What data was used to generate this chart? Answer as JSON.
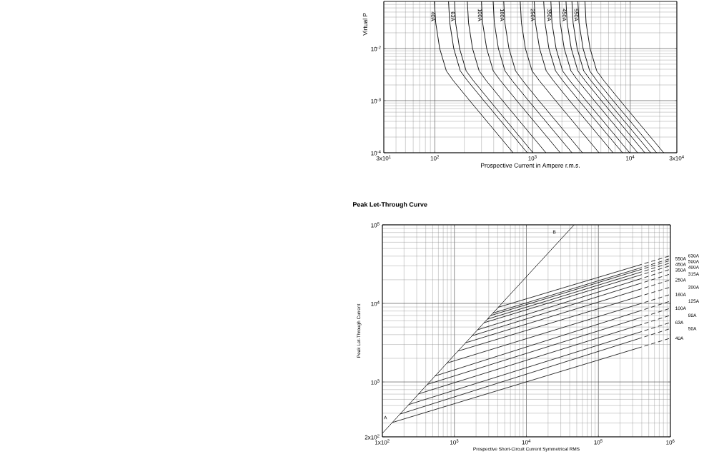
{
  "chart_data": [
    {
      "type": "line",
      "xlabel": "Prospective Current in Ampere r.m.s.",
      "ylabel": "Virtual P",
      "log": "xy",
      "grid": true,
      "xlim": [
        30,
        30000
      ],
      "ylim": [
        0.0001,
        0.08
      ],
      "xticks": [
        {
          "value": 30,
          "label": "3x10$^{1}$"
        },
        {
          "value": 100,
          "label": "10$^{2}$"
        },
        {
          "value": 1000,
          "label": "10$^{3}$"
        },
        {
          "value": 10000,
          "label": "10$^{4}$"
        },
        {
          "value": 30000,
          "label": "3x10$^{4}$"
        }
      ],
      "yticks": [
        {
          "value": 0.0001,
          "label": "10$^{-4}$"
        },
        {
          "value": 0.001,
          "label": "10$^{-3}$"
        },
        {
          "value": 0.01,
          "label": "10$^{-2}$"
        }
      ],
      "series": [
        {
          "name": "40A",
          "color": "#000000",
          "x": [
            98.8,
            102,
            112,
            131,
            154,
            227,
            632
          ],
          "values": [
            0.08,
            0.0312,
            0.01,
            0.00372,
            0.00243,
            0.001,
            0.0001
          ]
        },
        {
          "color": "#000000",
          "x": [
            138,
            142,
            156,
            182,
            215,
            317,
            883
          ],
          "values": [
            0.08,
            0.0312,
            0.01,
            0.00372,
            0.00243,
            0.001,
            0.0001
          ]
        },
        {
          "name": "63A",
          "color": "#000000",
          "x": [
            159,
            163,
            179,
            209,
            247,
            364,
            1010
          ],
          "values": [
            0.08,
            0.0312,
            0.01,
            0.00372,
            0.00243,
            0.001,
            0.0001
          ]
        },
        {
          "color": "#000000",
          "x": [
            215,
            221,
            243,
            284,
            335,
            493,
            1370
          ],
          "values": [
            0.08,
            0.0312,
            0.01,
            0.00372,
            0.00243,
            0.001,
            0.0001
          ]
        },
        {
          "name": "100A",
          "color": "#000000",
          "x": [
            300,
            308,
            339,
            396,
            468,
            689,
            1920
          ],
          "values": [
            0.08,
            0.0312,
            0.01,
            0.00372,
            0.00243,
            0.001,
            0.0001
          ]
        },
        {
          "color": "#000000",
          "x": [
            395,
            406,
            447,
            522,
            617,
            908,
            2530
          ],
          "values": [
            0.08,
            0.0312,
            0.01,
            0.00372,
            0.00243,
            0.001,
            0.0001
          ]
        },
        {
          "name": "160A",
          "color": "#000000",
          "x": [
            507,
            521,
            573,
            670,
            791,
            1160,
            3240
          ],
          "values": [
            0.08,
            0.0312,
            0.01,
            0.00372,
            0.00243,
            0.001,
            0.0001
          ]
        },
        {
          "color": "#000000",
          "x": [
            748,
            769,
            845,
            988,
            1170,
            1720,
            4790
          ],
          "values": [
            0.08,
            0.0312,
            0.01,
            0.00372,
            0.00243,
            0.001,
            0.0001
          ]
        },
        {
          "name": "250A",
          "color": "#000000",
          "x": [
            1040,
            1070,
            1180,
            1380,
            1630,
            2390,
            6670
          ],
          "values": [
            0.08,
            0.0312,
            0.01,
            0.00372,
            0.00243,
            0.001,
            0.0001
          ]
        },
        {
          "color": "#000000",
          "x": [
            1300,
            1340,
            1470,
            1720,
            2030,
            2990,
            8340
          ],
          "values": [
            0.08,
            0.0312,
            0.01,
            0.00372,
            0.00243,
            0.001,
            0.0001
          ]
        },
        {
          "name": "350A",
          "color": "#000000",
          "x": [
            1540,
            1580,
            1740,
            2030,
            2400,
            3530,
            9840
          ],
          "values": [
            0.08,
            0.0312,
            0.01,
            0.00372,
            0.00243,
            0.001,
            0.0001
          ]
        },
        {
          "color": "#000000",
          "x": [
            1870,
            1920,
            2110,
            2470,
            2910,
            4290,
            11900
          ],
          "values": [
            0.08,
            0.0312,
            0.01,
            0.00372,
            0.00243,
            0.001,
            0.0001
          ]
        },
        {
          "name": "450A",
          "color": "#000000",
          "x": [
            2200,
            2260,
            2490,
            2910,
            3440,
            5060,
            14100
          ],
          "values": [
            0.08,
            0.0312,
            0.01,
            0.00372,
            0.00243,
            0.001,
            0.0001
          ]
        },
        {
          "color": "#000000",
          "x": [
            2530,
            2600,
            2860,
            3340,
            3950,
            5810,
            16200
          ],
          "values": [
            0.08,
            0.0312,
            0.01,
            0.00372,
            0.00243,
            0.001,
            0.0001
          ]
        },
        {
          "name": "550A",
          "color": "#000000",
          "x": [
            2910,
            2990,
            3290,
            3850,
            4540,
            6680,
            18600
          ],
          "values": [
            0.08,
            0.0312,
            0.01,
            0.00372,
            0.00243,
            0.001,
            0.0001
          ]
        },
        {
          "color": "#000000",
          "x": [
            3440,
            3530,
            3880,
            4540,
            5360,
            7890,
            22000
          ],
          "values": [
            0.08,
            0.0312,
            0.01,
            0.00372,
            0.00243,
            0.001,
            0.0001
          ]
        }
      ]
    },
    {
      "type": "line",
      "title": "Peak Let-Through Curve",
      "xlabel": "Prospective Short-Circuit Current Symmetrical RMS",
      "ylabel": "Peak Let-Through Current",
      "log": "xy",
      "grid": true,
      "xlim": [
        100,
        1000000
      ],
      "ylim": [
        200,
        100000
      ],
      "xticks": [
        {
          "value": 100,
          "label": "1x10$^{2}$"
        },
        {
          "value": 1000,
          "label": "10$^{3}$"
        },
        {
          "value": 10000,
          "label": "10$^{4}$"
        },
        {
          "value": 100000,
          "label": "10$^{5}$"
        },
        {
          "value": 1000000,
          "label": "10$^{6}$"
        }
      ],
      "yticks": [
        {
          "value": 200,
          "label": "2x10$^{2}$"
        },
        {
          "value": 1000,
          "label": "10$^{3}$"
        },
        {
          "value": 10000,
          "label": "10$^{4}$"
        },
        {
          "value": 100000,
          "label": "10$^{5}$"
        }
      ],
      "annotations": [
        "A",
        "B"
      ],
      "series": [
        {
          "color": "#000000",
          "x": [
            100,
            46000
          ],
          "values": [
            222,
            100000
          ]
        },
        {
          "color": "#000000",
          "x": [
            138,
            350000
          ],
          "values": [
            305,
            2690
          ]
        },
        {
          "name": "40A",
          "color": "#000000",
          "line_style": "dashed",
          "x": [
            350000,
            1000000
          ],
          "values": [
            2690,
            3610
          ]
        },
        {
          "color": "#000000",
          "x": [
            176,
            350000
          ],
          "values": [
            390,
            3520
          ]
        },
        {
          "name": "50A",
          "color": "#000000",
          "line_style": "dashed",
          "x": [
            350000,
            1000000
          ],
          "values": [
            3520,
            4780
          ]
        },
        {
          "color": "#000000",
          "x": [
            232,
            350000
          ],
          "values": [
            515,
            4220
          ]
        },
        {
          "name": "63A",
          "color": "#000000",
          "line_style": "dashed",
          "x": [
            350000,
            1000000
          ],
          "values": [
            4220,
            5710
          ]
        },
        {
          "color": "#000000",
          "x": [
            318,
            350000
          ],
          "values": [
            705,
            5210
          ]
        },
        {
          "name": "80A",
          "color": "#000000",
          "line_style": "dashed",
          "x": [
            350000,
            1000000
          ],
          "values": [
            5210,
            7050
          ]
        },
        {
          "color": "#000000",
          "x": [
            422,
            350000
          ],
          "values": [
            931,
            6400
          ]
        },
        {
          "name": "100A",
          "color": "#000000",
          "line_style": "dashed",
          "x": [
            350000,
            1000000
          ],
          "values": [
            6400,
            8670
          ]
        },
        {
          "color": "#000000",
          "x": [
            537,
            350000
          ],
          "values": [
            1190,
            7850
          ]
        },
        {
          "name": "125A",
          "color": "#000000",
          "line_style": "dashed",
          "x": [
            350000,
            1000000
          ],
          "values": [
            7850,
            10700
          ]
        },
        {
          "color": "#000000",
          "x": [
            790,
            350000
          ],
          "values": [
            1740,
            9660
          ]
        },
        {
          "name": "160A",
          "color": "#000000",
          "line_style": "dashed",
          "x": [
            350000,
            1000000
          ],
          "values": [
            9660,
            13000
          ]
        },
        {
          "color": "#000000",
          "x": [
            1120,
            350000
          ],
          "values": [
            2470,
            12100
          ]
        },
        {
          "name": "200A",
          "color": "#000000",
          "line_style": "dashed",
          "x": [
            350000,
            1000000
          ],
          "values": [
            12100,
            16100
          ]
        },
        {
          "color": "#000000",
          "x": [
            1430,
            350000
          ],
          "values": [
            3150,
            14800
          ]
        },
        {
          "name": "250A",
          "color": "#000000",
          "line_style": "dashed",
          "x": [
            350000,
            1000000
          ],
          "values": [
            14800,
            19900
          ]
        },
        {
          "color": "#000000",
          "x": [
            1760,
            350000
          ],
          "values": [
            3870,
            17500
          ]
        },
        {
          "name": "315A",
          "color": "#000000",
          "line_style": "dashed",
          "x": [
            350000,
            1000000
          ],
          "values": [
            17500,
            23700
          ]
        },
        {
          "color": "#000000",
          "x": [
            2100,
            350000
          ],
          "values": [
            4610,
            20000
          ]
        },
        {
          "name": "350A",
          "color": "#000000",
          "line_style": "dashed",
          "x": [
            350000,
            1000000
          ],
          "values": [
            20000,
            27200
          ]
        },
        {
          "color": "#000000",
          "x": [
            2590,
            350000
          ],
          "values": [
            5680,
            22400
          ]
        },
        {
          "name": "400A",
          "color": "#000000",
          "line_style": "dashed",
          "x": [
            350000,
            1000000
          ],
          "values": [
            22400,
            30200
          ]
        },
        {
          "color": "#000000",
          "x": [
            2880,
            350000
          ],
          "values": [
            6310,
            24300
          ]
        },
        {
          "name": "450A",
          "color": "#000000",
          "line_style": "dashed",
          "x": [
            350000,
            1000000
          ],
          "values": [
            24300,
            32800
          ]
        },
        {
          "color": "#000000",
          "x": [
            3190,
            350000
          ],
          "values": [
            7000,
            26200
          ]
        },
        {
          "name": "500A",
          "color": "#000000",
          "line_style": "dashed",
          "x": [
            350000,
            1000000
          ],
          "values": [
            26200,
            35200
          ]
        },
        {
          "color": "#000000",
          "x": [
            3430,
            350000
          ],
          "values": [
            7520,
            27600
          ]
        },
        {
          "name": "550A",
          "color": "#000000",
          "line_style": "dashed",
          "x": [
            350000,
            1000000
          ],
          "values": [
            27600,
            37200
          ]
        },
        {
          "color": "#000000",
          "x": [
            4070,
            350000
          ],
          "values": [
            8930,
            30300
          ]
        },
        {
          "name": "630A",
          "color": "#000000",
          "line_style": "dashed",
          "x": [
            350000,
            1000000
          ],
          "values": [
            30300,
            40500
          ]
        }
      ]
    }
  ]
}
